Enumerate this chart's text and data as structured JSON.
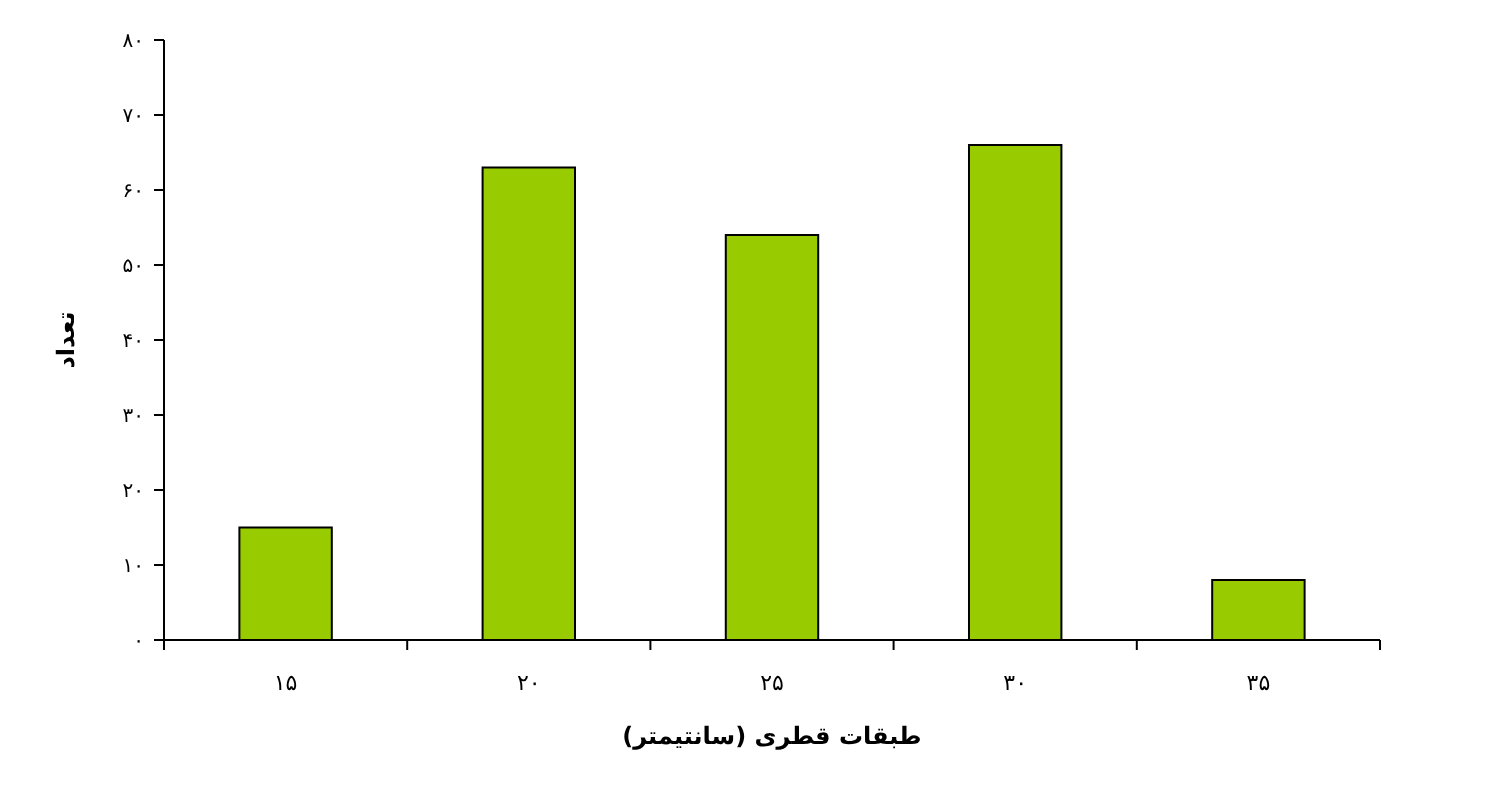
{
  "chart_data": {
    "type": "bar",
    "xlabel": "طبقات قطری (سانتیمتر)",
    "ylabel": "تعداد",
    "categories": [
      "۱۵",
      "۲۰",
      "۲۵",
      "۳۰",
      "۳۵"
    ],
    "values": [
      15,
      63,
      54,
      66,
      8
    ],
    "color": "#99cc00",
    "ylim": [
      0,
      80
    ],
    "yticks": [
      {
        "value": 0,
        "label": "۰"
      },
      {
        "value": 10,
        "label": "۱۰"
      },
      {
        "value": 20,
        "label": "۲۰"
      },
      {
        "value": 30,
        "label": "۳۰"
      },
      {
        "value": 40,
        "label": "۴۰"
      },
      {
        "value": 50,
        "label": "۵۰"
      },
      {
        "value": 60,
        "label": "۶۰"
      },
      {
        "value": 70,
        "label": "۷۰"
      },
      {
        "value": 80,
        "label": "۸۰"
      }
    ],
    "grid": false
  }
}
